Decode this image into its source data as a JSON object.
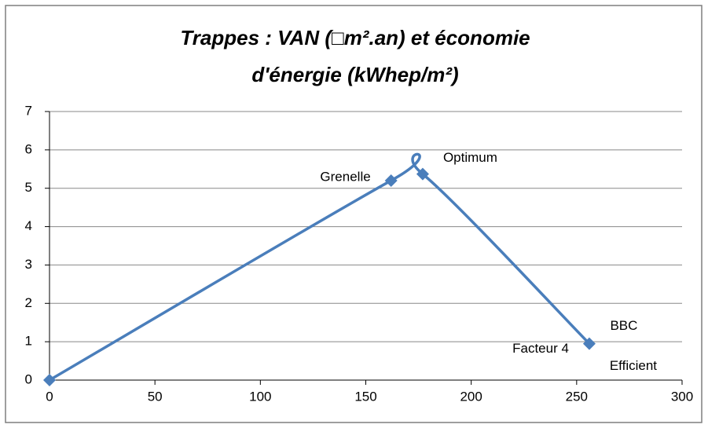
{
  "chart_data": {
    "type": "scatter",
    "title": [
      "Trappes : VAN (□m².an) et économie",
      "d'énergie (kWhep/m²)"
    ],
    "x": [
      0,
      162,
      177,
      256
    ],
    "values": [
      0,
      5.2,
      5.37,
      0.95
    ],
    "point_labels": [
      null,
      "Grenelle",
      "Optimum",
      "Facteur 4"
    ],
    "annotations": [
      "BBC",
      "Efficient"
    ],
    "color": "#4a7ebb",
    "smooth": true,
    "xlim": [
      0,
      300
    ],
    "xticks": [
      0,
      50,
      100,
      150,
      200,
      250,
      300
    ],
    "ylim": [
      0,
      7
    ],
    "yticks": [
      0,
      1,
      2,
      3,
      4,
      5,
      6,
      7
    ],
    "grid": true
  }
}
